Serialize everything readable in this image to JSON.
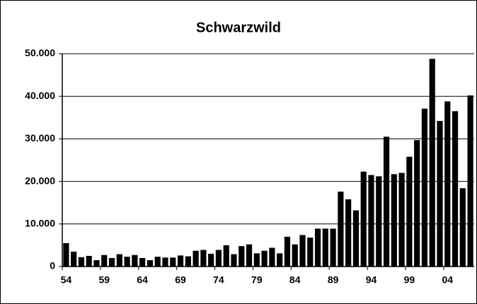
{
  "chart_data": {
    "type": "bar",
    "title": "Schwarzwild",
    "categories": [
      "54",
      null,
      null,
      null,
      null,
      "59",
      null,
      null,
      null,
      null,
      "64",
      null,
      null,
      null,
      null,
      "69",
      null,
      null,
      null,
      null,
      "74",
      null,
      null,
      null,
      null,
      "79",
      null,
      null,
      null,
      null,
      "84",
      null,
      null,
      null,
      null,
      "89",
      null,
      null,
      null,
      null,
      "94",
      null,
      null,
      null,
      null,
      "99",
      null,
      null,
      null,
      null,
      "04",
      null,
      null,
      null
    ],
    "values": [
      5500,
      3500,
      2200,
      2500,
      1500,
      2700,
      2000,
      2900,
      2300,
      2700,
      2000,
      1500,
      2300,
      2100,
      2100,
      2600,
      2400,
      3700,
      3900,
      3000,
      3900,
      5000,
      2900,
      4800,
      5200,
      3100,
      3700,
      4400,
      3100,
      7000,
      5200,
      7400,
      6800,
      8900,
      8900,
      8900,
      17600,
      15800,
      13200,
      22300,
      21500,
      21200,
      30500,
      21700,
      22000,
      25800,
      29700,
      37100,
      48800,
      34200,
      38800,
      36500,
      18400,
      40200
    ],
    "color": "#000000",
    "ylim": [
      0,
      50000
    ],
    "yticks": [
      0,
      {
        "value": 10000,
        "label": "10.000"
      },
      {
        "value": 20000,
        "label": "20.000"
      },
      {
        "value": 30000,
        "label": "30.000"
      },
      {
        "value": 40000,
        "label": "40.000"
      },
      {
        "value": 50000,
        "label": "50.000"
      }
    ],
    "grid": true
  }
}
